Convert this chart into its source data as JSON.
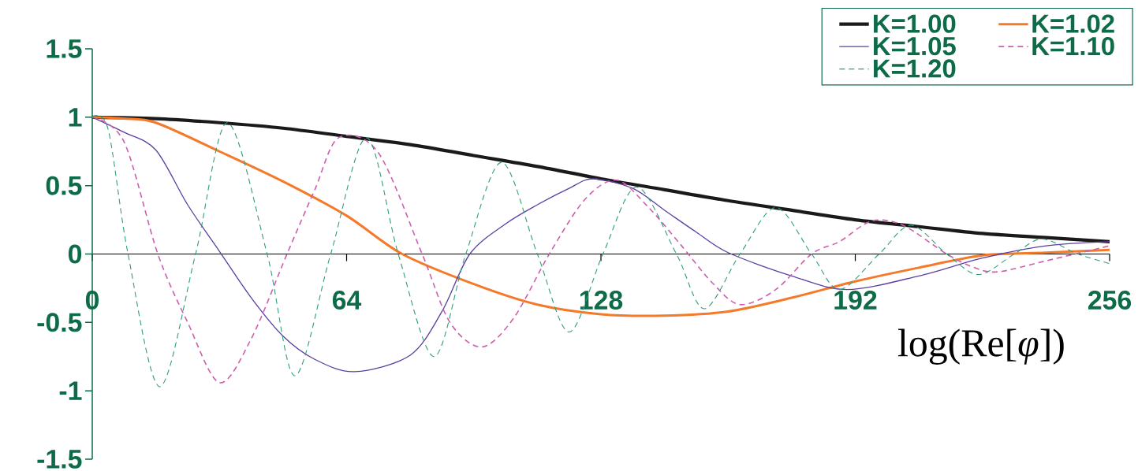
{
  "chart_data": {
    "type": "line",
    "xlabel": "log(Re[*φ*])",
    "xlim": [
      0,
      256
    ],
    "xticks": [
      0,
      64,
      128,
      192,
      256
    ],
    "ylim": [
      -1.5,
      1.5
    ],
    "yticks": [
      -1.5,
      -1,
      -0.5,
      0,
      0.5,
      1,
      1.5
    ],
    "legend": "top right",
    "series": [
      {
        "name": "K=1.00",
        "color": "#1a1a1a",
        "line_style": "solid",
        "x": [
          0,
          16,
          32,
          48,
          64,
          80,
          96,
          112,
          128,
          144,
          160,
          176,
          192,
          208,
          224,
          240,
          256
        ],
        "values": [
          1,
          0.99,
          0.96,
          0.92,
          0.86,
          0.8,
          0.72,
          0.64,
          0.55,
          0.47,
          0.39,
          0.32,
          0.25,
          0.2,
          0.15,
          0.12,
          0.09
        ]
      },
      {
        "name": "K=1.02",
        "color": "#f47a2a",
        "line_style": "solid",
        "x": [
          0,
          8,
          16,
          32,
          48,
          64,
          78,
          96,
          112,
          128,
          144,
          160,
          176,
          192,
          208,
          224,
          240,
          256
        ],
        "values": [
          1,
          0.99,
          0.96,
          0.75,
          0.53,
          0.28,
          0,
          -0.22,
          -0.37,
          -0.44,
          -0.45,
          -0.42,
          -0.32,
          -0.2,
          -0.1,
          -0.01,
          0.01,
          0.03
        ]
      },
      {
        "name": "K=1.05",
        "color": "#5b3fa0",
        "line_style": "solid",
        "x": [
          0,
          8,
          16,
          24,
          32,
          40,
          48,
          56,
          66,
          80,
          88,
          95,
          104,
          112,
          120,
          126,
          136,
          144,
          152,
          160,
          176,
          190,
          208,
          224,
          240,
          256
        ],
        "values": [
          1,
          0.89,
          0.76,
          0.36,
          0.02,
          -0.32,
          -0.6,
          -0.77,
          -0.86,
          -0.74,
          -0.42,
          0,
          0.22,
          0.36,
          0.48,
          0.55,
          0.48,
          0.32,
          0.16,
          0.01,
          -0.16,
          -0.26,
          -0.16,
          -0.03,
          0.06,
          0.09
        ]
      },
      {
        "name": "K=1.10",
        "color": "#cc5fb0",
        "line_style": "dashed",
        "x": [
          0,
          8,
          16.5,
          24,
          32,
          40,
          49,
          56,
          62,
          72,
          83,
          90,
          98,
          106,
          115,
          124,
          132,
          140,
          148,
          156,
          163,
          172,
          181,
          188,
          196,
          204,
          215,
          222,
          228,
          240,
          256
        ],
        "values": [
          1,
          0.82,
          0,
          -0.5,
          -0.94,
          -0.62,
          0,
          0.47,
          0.85,
          0.74,
          0,
          -0.5,
          -0.68,
          -0.47,
          0,
          0.4,
          0.54,
          0.34,
          0.07,
          -0.21,
          -0.37,
          -0.26,
          0,
          0.09,
          0.24,
          0.21,
          0,
          -0.1,
          -0.13,
          -0.05,
          0.06
        ]
      },
      {
        "name": "K=1.20",
        "color": "#2e9e7a",
        "line_style": "dashed",
        "x": [
          0,
          4,
          9,
          17,
          26,
          34,
          44,
          51,
          60,
          69,
          77,
          86,
          94,
          103,
          112,
          120,
          128.5,
          137,
          147,
          154,
          163,
          172,
          181,
          188,
          198,
          206,
          215,
          223,
          232,
          239,
          248,
          256
        ],
        "values": [
          1,
          0.91,
          0,
          -0.97,
          0,
          0.96,
          0,
          -0.89,
          0,
          0.85,
          0,
          -0.75,
          0,
          0.67,
          0,
          -0.57,
          0,
          0.49,
          0,
          -0.4,
          0,
          0.34,
          0,
          -0.26,
          0,
          0.21,
          0,
          -0.15,
          0,
          0.11,
          0,
          -0.07
        ]
      }
    ]
  }
}
